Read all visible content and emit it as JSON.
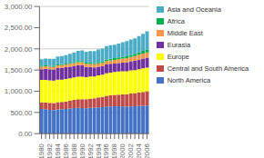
{
  "chart_data": {
    "type": "bar",
    "stacked": true,
    "grid": true,
    "legend": "right",
    "categories": [
      "1980",
      null,
      "1982",
      null,
      "1984",
      null,
      "1986",
      null,
      "1988",
      null,
      "1990",
      null,
      "1992",
      null,
      "1994",
      null,
      "1996",
      null,
      "1998",
      null,
      "2000",
      null,
      "2002",
      null,
      "2004",
      null,
      "2006"
    ],
    "series": [
      {
        "name": "North America",
        "color": "#4472C4",
        "values": [
          580,
          575,
          560,
          555,
          570,
          575,
          580,
          590,
          605,
          610,
          605,
          600,
          610,
          615,
          620,
          625,
          640,
          640,
          645,
          645,
          640,
          635,
          640,
          645,
          650,
          655,
          660
        ]
      },
      {
        "name": "Central and South America",
        "color": "#BE4B48",
        "values": [
          155,
          160,
          165,
          165,
          175,
          175,
          180,
          185,
          190,
          200,
          205,
          210,
          215,
          220,
          235,
          240,
          255,
          265,
          270,
          275,
          285,
          295,
          305,
          310,
          320,
          330,
          340
        ]
      },
      {
        "name": "Europe",
        "color": "#FFFF00",
        "values": [
          530,
          530,
          530,
          530,
          530,
          525,
          530,
          530,
          530,
          530,
          530,
          520,
          520,
          510,
          520,
          525,
          530,
          535,
          540,
          545,
          545,
          540,
          545,
          545,
          550,
          555,
          555
        ]
      },
      {
        "name": "Eurasia",
        "color": "#7030A0",
        "values": [
          255,
          265,
          265,
          265,
          270,
          275,
          275,
          275,
          275,
          275,
          275,
          245,
          230,
          215,
          205,
          200,
          205,
          205,
          200,
          200,
          205,
          210,
          215,
          220,
          225,
          230,
          235
        ]
      },
      {
        "name": "Middle East",
        "color": "#F79646",
        "values": [
          60,
          60,
          60,
          60,
          65,
          65,
          65,
          65,
          65,
          70,
          70,
          70,
          75,
          75,
          80,
          80,
          80,
          85,
          85,
          90,
          95,
          100,
          105,
          110,
          115,
          120,
          125
        ]
      },
      {
        "name": "Africa",
        "color": "#00B050",
        "values": [
          20,
          20,
          20,
          22,
          22,
          22,
          22,
          24,
          24,
          26,
          26,
          28,
          28,
          30,
          32,
          34,
          36,
          38,
          40,
          42,
          44,
          46,
          48,
          52,
          56,
          62,
          68
        ]
      },
      {
        "name": "Asia and Oceania",
        "color": "#4BACC6",
        "values": [
          155,
          160,
          165,
          170,
          185,
          195,
          200,
          215,
          225,
          240,
          255,
          260,
          270,
          285,
          295,
          305,
          320,
          320,
          320,
          325,
          340,
          355,
          360,
          365,
          385,
          400,
          430
        ]
      }
    ],
    "ylim": [
      0,
      3000
    ],
    "yticks": [
      {
        "value": 0,
        "label": "0.00"
      },
      {
        "value": 500,
        "label": "500.00"
      },
      {
        "value": 1000,
        "label": "1,000.00"
      },
      {
        "value": 1500,
        "label": "1,500.00"
      },
      {
        "value": 2000,
        "label": "2,000.00"
      },
      {
        "value": 2500,
        "label": "2,500.00"
      },
      {
        "value": 3000,
        "label": "3,000.00"
      }
    ]
  }
}
